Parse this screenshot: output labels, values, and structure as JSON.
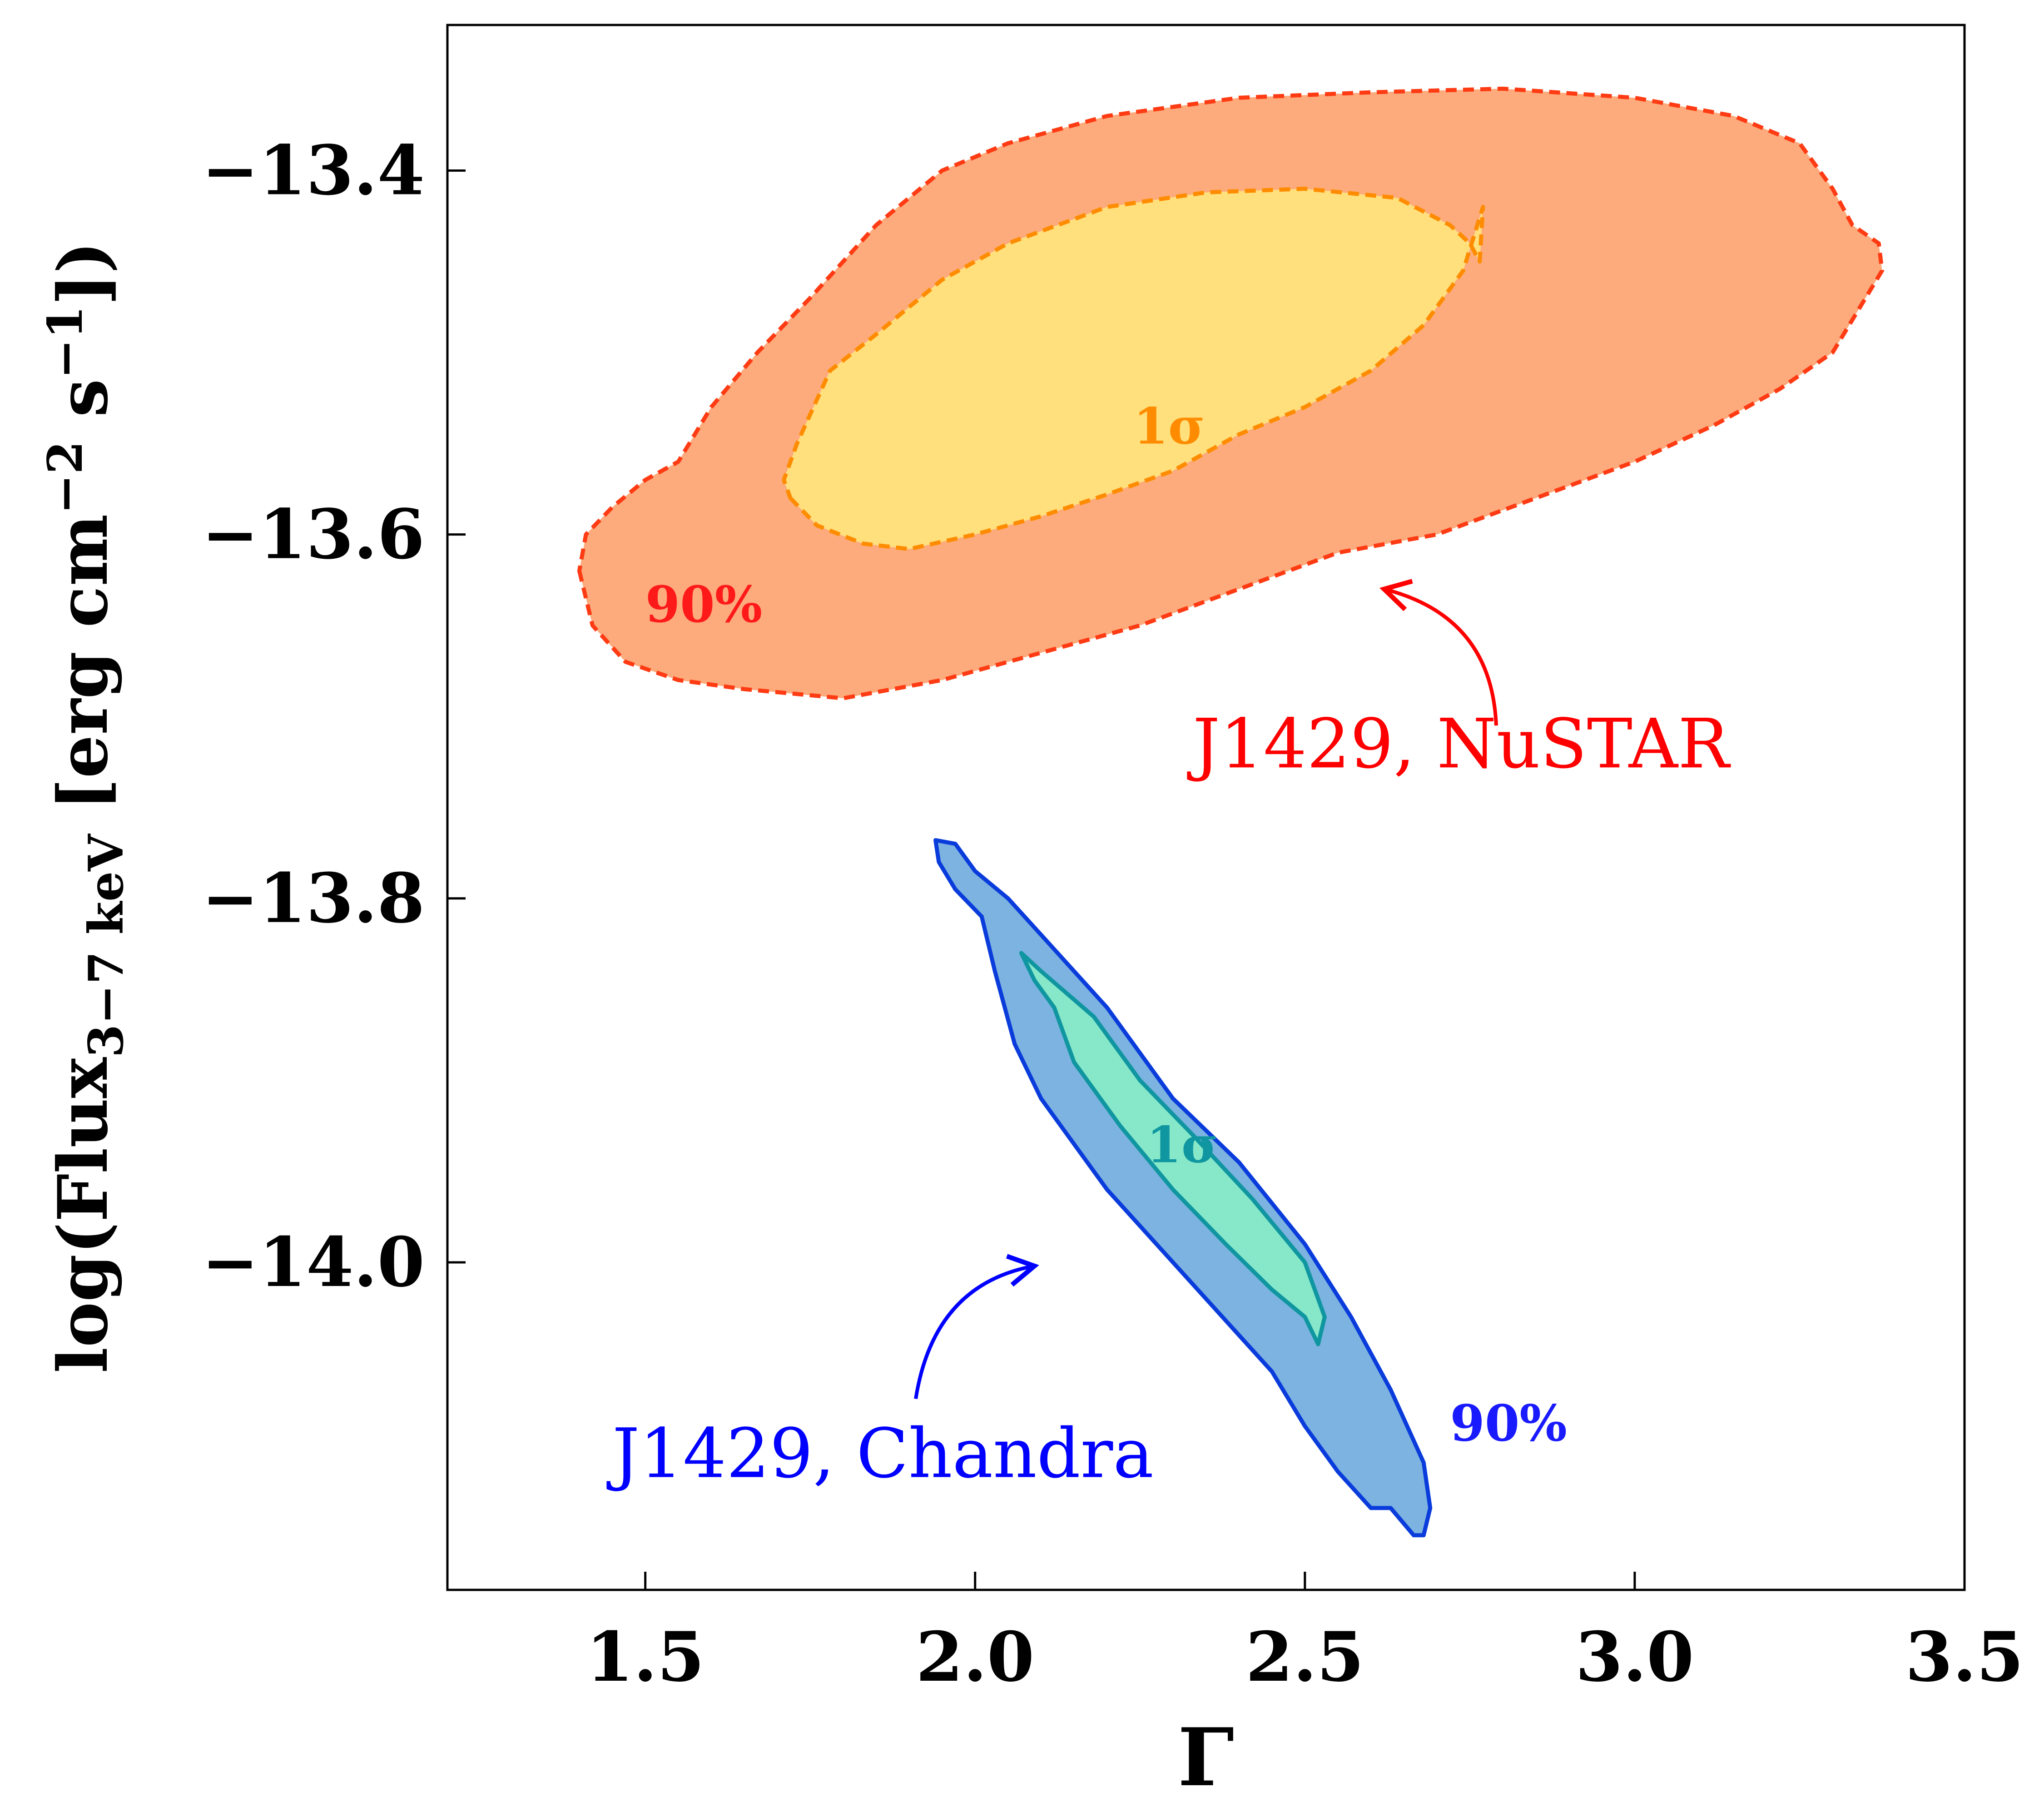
{
  "chart_data": {
    "type": "contour",
    "xlabel": "Γ",
    "ylabel": {
      "prefix": "log(Flux",
      "subscript": "3−7 keV",
      "units_open": " [erg cm",
      "sup1": "−2",
      "units_mid": " s",
      "sup2": "−1",
      "units_close": "])"
    },
    "xlim": [
      1.2,
      3.5
    ],
    "ylim": [
      -14.18,
      -13.32
    ],
    "x_ticks": [
      1.5,
      2.0,
      2.5,
      3.0,
      3.5
    ],
    "x_tick_labels": [
      "1.5",
      "2.0",
      "2.5",
      "3.0",
      "3.5"
    ],
    "y_ticks": [
      -13.4,
      -13.6,
      -13.8,
      -14.0
    ],
    "y_tick_labels": [
      "−13.4",
      "−13.6",
      "−13.8",
      "−14.0"
    ],
    "grid": false,
    "series": [
      {
        "name": "J1429, NuSTAR",
        "color": "#ff0000",
        "contours": [
          {
            "level": "90%",
            "fill": "#fdab7c",
            "stroke": "#ff3b14",
            "dash": "dashed",
            "points": [
              [
                1.4,
                -13.62
              ],
              [
                1.42,
                -13.65
              ],
              [
                1.47,
                -13.67
              ],
              [
                1.55,
                -13.68
              ],
              [
                1.65,
                -13.685
              ],
              [
                1.8,
                -13.69
              ],
              [
                1.95,
                -13.68
              ],
              [
                2.1,
                -13.665
              ],
              [
                2.25,
                -13.65
              ],
              [
                2.4,
                -13.63
              ],
              [
                2.55,
                -13.61
              ],
              [
                2.7,
                -13.6
              ],
              [
                2.85,
                -13.58
              ],
              [
                3.0,
                -13.56
              ],
              [
                3.12,
                -13.54
              ],
              [
                3.22,
                -13.52
              ],
              [
                3.3,
                -13.5
              ],
              [
                3.35,
                -13.47
              ],
              [
                3.375,
                -13.455
              ],
              [
                3.37,
                -13.44
              ],
              [
                3.33,
                -13.43
              ],
              [
                3.3,
                -13.41
              ],
              [
                3.25,
                -13.385
              ],
              [
                3.15,
                -13.37
              ],
              [
                3.0,
                -13.36
              ],
              [
                2.8,
                -13.355
              ],
              [
                2.6,
                -13.357
              ],
              [
                2.4,
                -13.36
              ],
              [
                2.2,
                -13.37
              ],
              [
                2.05,
                -13.385
              ],
              [
                1.95,
                -13.4
              ],
              [
                1.85,
                -13.43
              ],
              [
                1.75,
                -13.47
              ],
              [
                1.67,
                -13.5
              ],
              [
                1.6,
                -13.53
              ],
              [
                1.55,
                -13.56
              ],
              [
                1.5,
                -13.57
              ],
              [
                1.45,
                -13.585
              ],
              [
                1.41,
                -13.6
              ]
            ]
          },
          {
            "level": "1σ",
            "fill": "#ffe07c",
            "stroke": "#ff8c00",
            "dash": "dashed",
            "points": [
              [
                1.72,
                -13.58
              ],
              [
                1.76,
                -13.595
              ],
              [
                1.83,
                -13.605
              ],
              [
                1.9,
                -13.608
              ],
              [
                2.0,
                -13.6
              ],
              [
                2.1,
                -13.59
              ],
              [
                2.2,
                -13.578
              ],
              [
                2.3,
                -13.565
              ],
              [
                2.4,
                -13.545
              ],
              [
                2.5,
                -13.53
              ],
              [
                2.6,
                -13.51
              ],
              [
                2.68,
                -13.485
              ],
              [
                2.74,
                -13.455
              ],
              [
                2.77,
                -13.42
              ],
              [
                2.765,
                -13.45
              ],
              [
                2.75,
                -13.44
              ],
              [
                2.72,
                -13.43
              ],
              [
                2.64,
                -13.415
              ],
              [
                2.5,
                -13.41
              ],
              [
                2.35,
                -13.412
              ],
              [
                2.2,
                -13.42
              ],
              [
                2.05,
                -13.44
              ],
              [
                1.95,
                -13.46
              ],
              [
                1.85,
                -13.49
              ],
              [
                1.78,
                -13.51
              ],
              [
                1.73,
                -13.55
              ],
              [
                1.71,
                -13.57
              ]
            ]
          }
        ]
      },
      {
        "name": "J1429, Chandra",
        "color": "#0000ff",
        "contours": [
          {
            "level": "90%",
            "fill": "#7cb3e0",
            "stroke": "#0a3cdc",
            "dash": "solid",
            "points": [
              [
                1.94,
                -13.768
              ],
              [
                1.97,
                -13.77
              ],
              [
                2.0,
                -13.785
              ],
              [
                2.05,
                -13.8
              ],
              [
                2.1,
                -13.82
              ],
              [
                2.2,
                -13.86
              ],
              [
                2.3,
                -13.91
              ],
              [
                2.4,
                -13.945
              ],
              [
                2.5,
                -13.99
              ],
              [
                2.57,
                -14.03
              ],
              [
                2.63,
                -14.07
              ],
              [
                2.68,
                -14.11
              ],
              [
                2.69,
                -14.135
              ],
              [
                2.68,
                -14.15
              ],
              [
                2.665,
                -14.15
              ],
              [
                2.63,
                -14.135
              ],
              [
                2.6,
                -14.135
              ],
              [
                2.55,
                -14.115
              ],
              [
                2.5,
                -14.09
              ],
              [
                2.45,
                -14.06
              ],
              [
                2.4,
                -14.04
              ],
              [
                2.3,
                -14.0
              ],
              [
                2.2,
                -13.96
              ],
              [
                2.1,
                -13.91
              ],
              [
                2.06,
                -13.88
              ],
              [
                2.03,
                -13.84
              ],
              [
                2.01,
                -13.81
              ],
              [
                1.97,
                -13.795
              ],
              [
                1.945,
                -13.78
              ]
            ]
          },
          {
            "level": "1σ",
            "fill": "#86e8c9",
            "stroke": "#1096a0",
            "dash": "solid",
            "points": [
              [
                2.07,
                -13.83
              ],
              [
                2.1,
                -13.84
              ],
              [
                2.18,
                -13.865
              ],
              [
                2.25,
                -13.9
              ],
              [
                2.33,
                -13.93
              ],
              [
                2.42,
                -13.965
              ],
              [
                2.5,
                -14.0
              ],
              [
                2.53,
                -14.03
              ],
              [
                2.52,
                -14.045
              ],
              [
                2.5,
                -14.03
              ],
              [
                2.45,
                -14.015
              ],
              [
                2.38,
                -13.99
              ],
              [
                2.3,
                -13.96
              ],
              [
                2.22,
                -13.925
              ],
              [
                2.15,
                -13.89
              ],
              [
                2.12,
                -13.86
              ],
              [
                2.09,
                -13.845
              ]
            ]
          }
        ]
      }
    ],
    "annotations": [
      {
        "text": "90%",
        "x": 1.5,
        "y": -13.648,
        "color": "#ff1a1a"
      },
      {
        "text": "1σ",
        "x": 2.24,
        "y": -13.55,
        "color": "#ff8c00"
      },
      {
        "text": "1σ",
        "x": 2.26,
        "y": -13.945,
        "color": "#1096a0"
      },
      {
        "text": "90%",
        "x": 2.72,
        "y": -14.098,
        "color": "#1a1aff"
      }
    ],
    "source_labels": [
      {
        "text": "J1429, NuSTAR",
        "x": 2.33,
        "y": -13.728,
        "color": "#ff0000",
        "arrow_from": [
          2.79,
          -13.705
        ],
        "arrow_to": [
          2.62,
          -13.63
        ]
      },
      {
        "text": "J1429, Chandra",
        "x": 1.45,
        "y": -14.118,
        "color": "#0000ff",
        "arrow_from": [
          1.91,
          -14.075
        ],
        "arrow_to": [
          2.09,
          -14.002
        ]
      }
    ]
  }
}
